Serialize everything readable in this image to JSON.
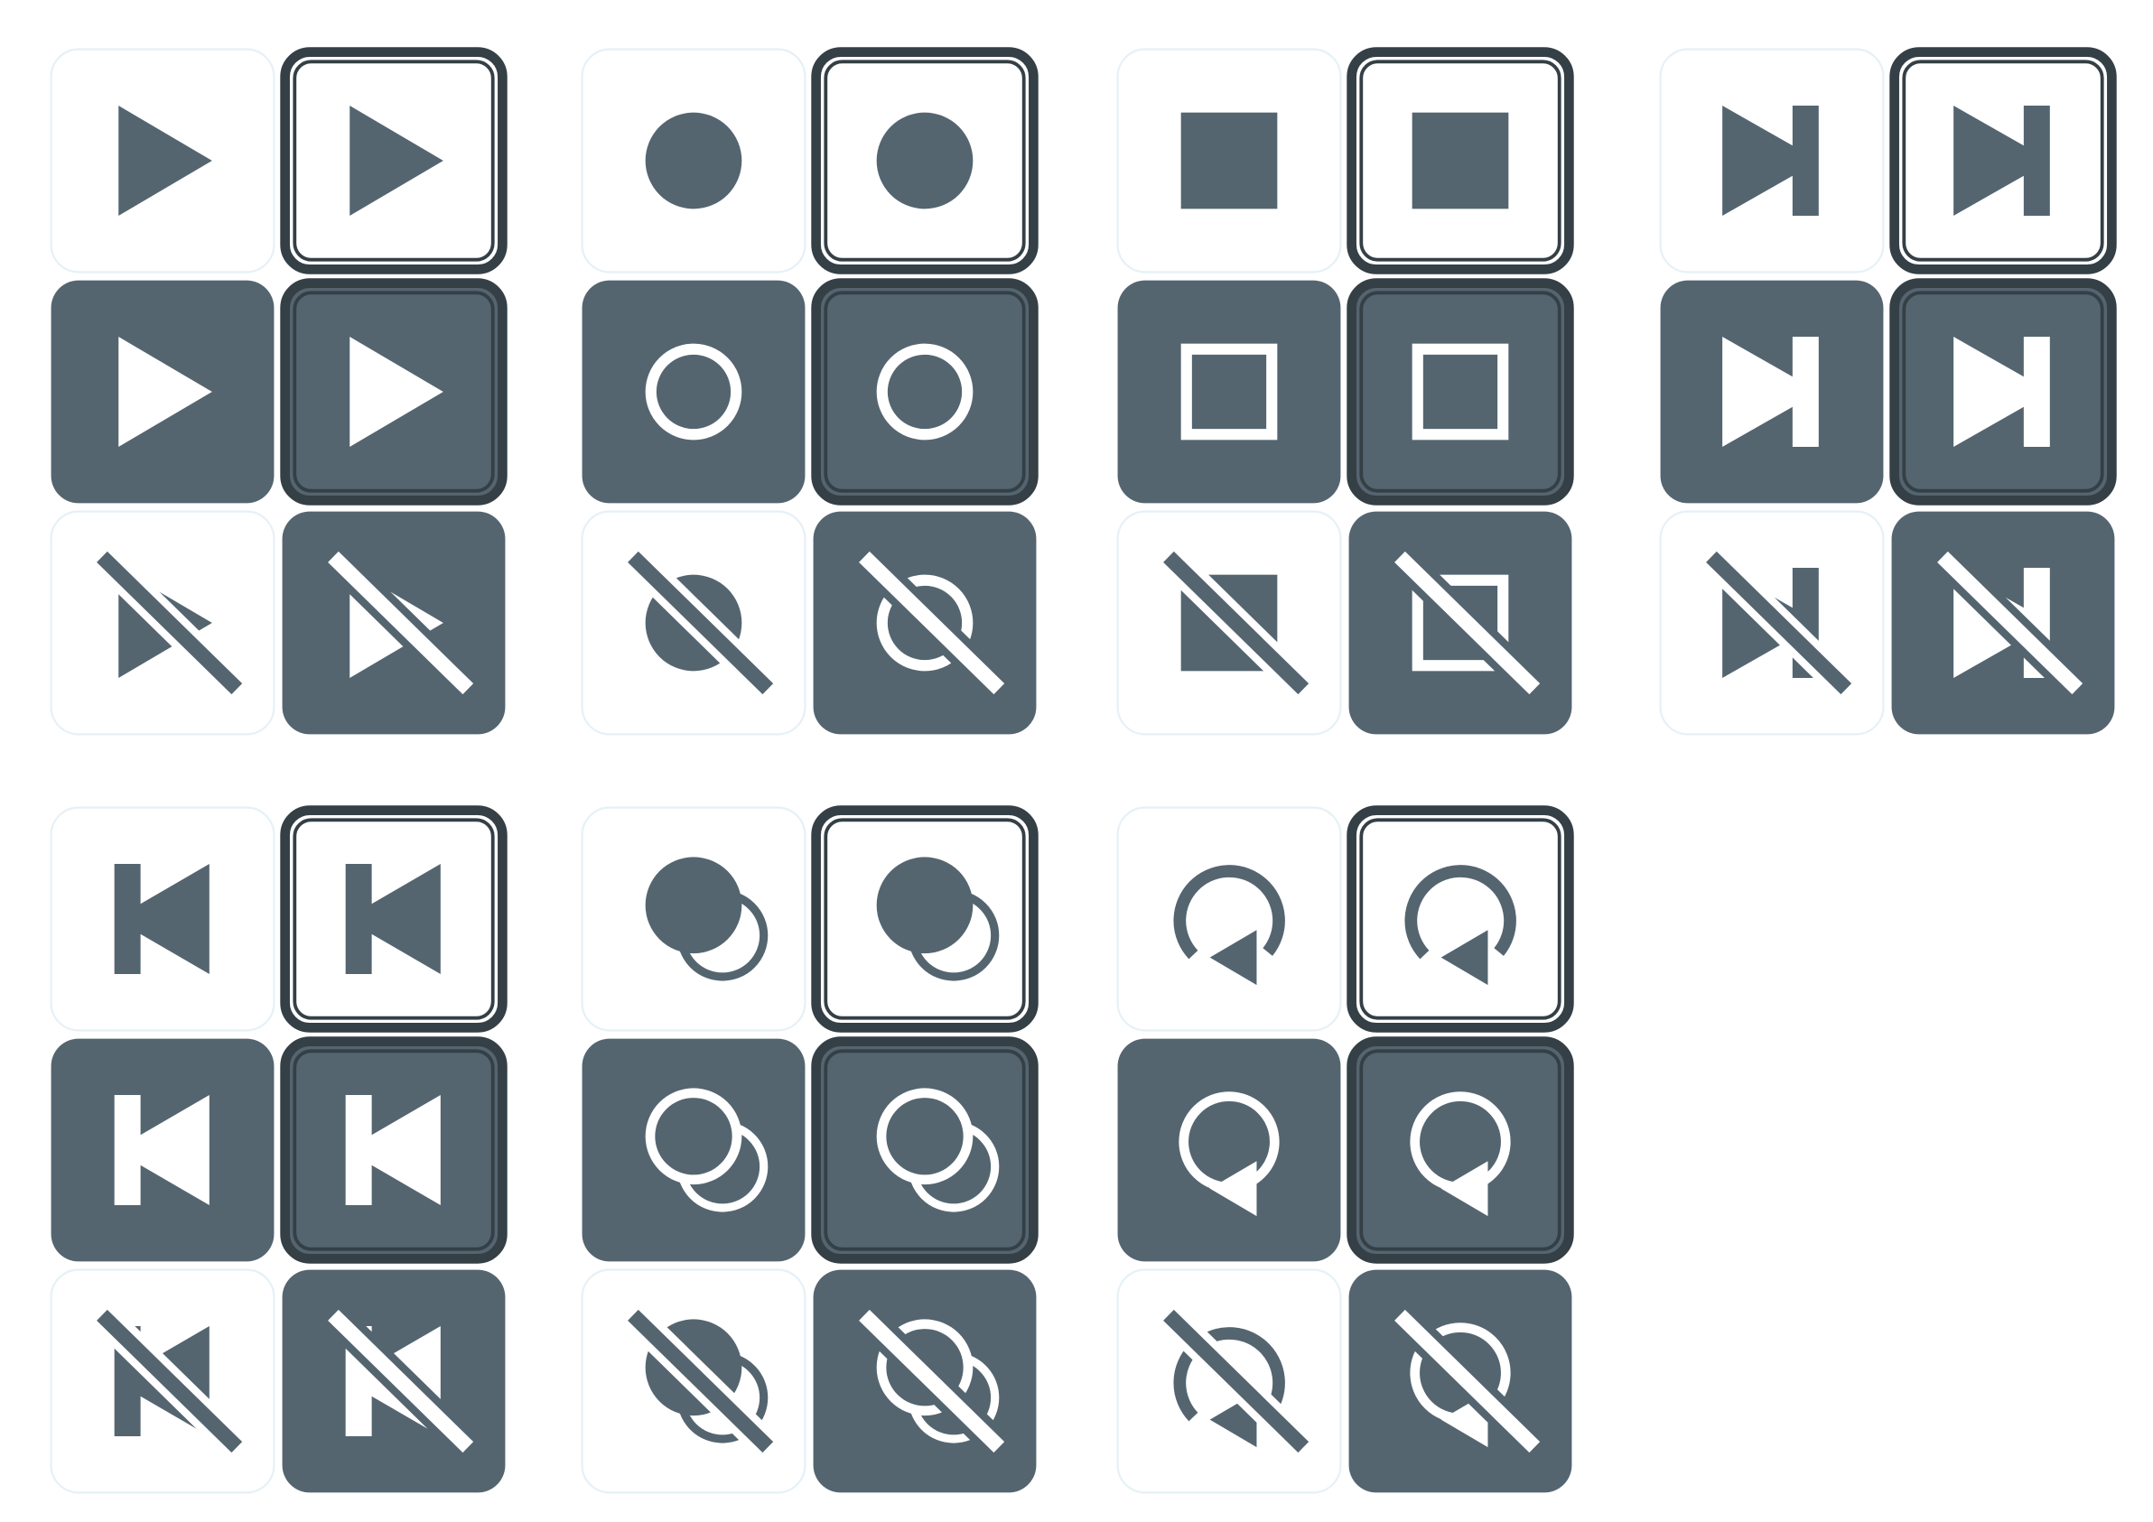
{
  "palette": {
    "ink": "#546570",
    "border": "#343f46",
    "light_bg": "#ffffff",
    "light_edge": "#e6f1f7",
    "reverse": "#ffffff"
  },
  "variants": [
    "plain",
    "bordered",
    "dark",
    "dark-bordered",
    "disabled",
    "disabled-dark"
  ],
  "icons": [
    {
      "name": "play",
      "shape": "play-icon"
    },
    {
      "name": "record",
      "shape": "record-icon"
    },
    {
      "name": "stop",
      "shape": "stop-icon"
    },
    {
      "name": "next",
      "shape": "skip-forward-icon"
    },
    {
      "name": "previous",
      "shape": "skip-back-icon"
    },
    {
      "name": "overdub",
      "shape": "overdub-icon"
    },
    {
      "name": "loop",
      "shape": "loop-icon"
    }
  ]
}
